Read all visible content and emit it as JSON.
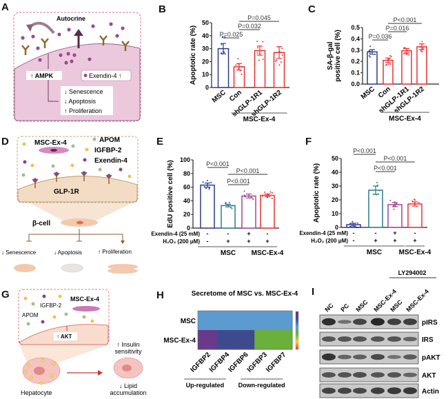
{
  "panels": {
    "A": {
      "label": "A",
      "autocrine": "Autocrine",
      "ampk": "↑ AMPK",
      "exendin": "Exendin-4 ↑",
      "effects": [
        "↓ Senescence",
        "↓ Apoptosis",
        "↑ Proliferation"
      ],
      "colors": {
        "border": "#c86fa3",
        "cell": "#ecc8dd",
        "dot": "#9b4a93",
        "receptor": "#8a6a2e"
      }
    },
    "D": {
      "label": "D",
      "cell_name": "MSC-Ex-4",
      "legend": [
        "APOM",
        "IGFBP-2",
        "Exendin-4"
      ],
      "receptor": "GLP-1R",
      "target": "β-cell",
      "effects": [
        "↓ Senescence",
        "↓ Apoptosis",
        "↑ Proliferation"
      ],
      "colors": {
        "border": "#c9a27e",
        "cell": "#f3dcc4",
        "apom": "#9bc47f",
        "igfbp2": "#f2c14e",
        "exendin": "#8e3e8c"
      }
    },
    "G": {
      "label": "G",
      "cell_name": "MSC-Ex-4",
      "igfbp2": "IGFBP-2",
      "apom": "APOM",
      "akt": "↑ AKT",
      "hepatocyte": "Hepatocyte",
      "insulin": [
        "↑ Insulin",
        "sensitivity"
      ],
      "lipid": [
        "↓ Lipid",
        "accumulation"
      ],
      "colors": {
        "border": "#e07b7b",
        "cell": "#f9dccb",
        "arrow": "#cc3333"
      }
    },
    "I": {
      "label": "I",
      "treatment": "LY294002",
      "lanes": [
        "NC",
        "PC",
        "MSC",
        "MSC-Ex-4",
        "MSC",
        "MSC-Ex-4"
      ],
      "rows": [
        {
          "name": "pIRS",
          "intensity": [
            0.95,
            0.35,
            0.75,
            1.0,
            0.8,
            0.8
          ]
        },
        {
          "name": "IRS",
          "intensity": [
            0.6,
            0.6,
            0.6,
            0.6,
            0.6,
            0.45
          ]
        },
        {
          "name": "pAKT",
          "intensity": [
            0.9,
            0.45,
            0.5,
            0.7,
            0.35,
            0.55
          ]
        },
        {
          "name": "AKT",
          "intensity": [
            0.6,
            0.6,
            0.65,
            0.6,
            0.6,
            0.45
          ]
        },
        {
          "name": "Actin",
          "intensity": [
            0.75,
            0.75,
            0.7,
            0.8,
            0.85,
            0.85
          ]
        }
      ]
    }
  },
  "chart_data": [
    {
      "panel": "B",
      "type": "bar",
      "ylabel": "Apoptotic rate (%)",
      "categories": [
        "MSC",
        "Con",
        "shGLP-1R1",
        "shGLP-1R2"
      ],
      "values": [
        30,
        16,
        28.5,
        27
      ],
      "errors": [
        4,
        2.5,
        3.5,
        4.5
      ],
      "ylim": [
        0,
        50
      ],
      "yticks": [
        "0",
        "10",
        "20",
        "30",
        "40",
        "50"
      ],
      "colors": [
        "#2b3a8c",
        "#e8312f",
        "#e8312f",
        "#e8312f"
      ],
      "groups": [
        {
          "label": "MSC-Ex-4",
          "from": 1,
          "to": 3
        }
      ],
      "comparisons": [
        {
          "pair": [
            0,
            1
          ],
          "label": "P=0.025"
        },
        {
          "pair": [
            1,
            2
          ],
          "label": "P=0.032"
        },
        {
          "pair": [
            1,
            3
          ],
          "label": "P=0.045"
        }
      ]
    },
    {
      "panel": "C",
      "type": "bar",
      "ylabel": [
        "SA-β-gal",
        "positive cell (%)"
      ],
      "categories": [
        "MSC",
        "Con",
        "shGLP-1R1",
        "shGLP-1R2"
      ],
      "values": [
        0.285,
        0.21,
        0.295,
        0.33
      ],
      "errors": [
        0.02,
        0.02,
        0.02,
        0.025
      ],
      "ylim": [
        0,
        0.5
      ],
      "yticks": [
        "0.0",
        "0.1",
        "0.2",
        "0.3",
        "0.4",
        "0.5"
      ],
      "colors": [
        "#2b3a8c",
        "#e8312f",
        "#e8312f",
        "#e8312f"
      ],
      "groups": [
        {
          "label": "MSC-Ex-4",
          "from": 1,
          "to": 3
        }
      ],
      "comparisons": [
        {
          "pair": [
            0,
            1
          ],
          "label": "P=0.036"
        },
        {
          "pair": [
            1,
            2
          ],
          "label": "P=0.016"
        },
        {
          "pair": [
            1,
            3
          ],
          "label": "P<0.001"
        }
      ]
    },
    {
      "panel": "E",
      "type": "bar",
      "ylabel": "EdU positive cell (%)",
      "values": [
        63,
        33,
        47,
        48
      ],
      "errors": [
        3,
        2,
        3,
        2
      ],
      "ylim": [
        0,
        100
      ],
      "yticks": [
        "0",
        "20",
        "40",
        "60",
        "80",
        "100"
      ],
      "colors": [
        "#2b3a8c",
        "#2a7a8a",
        "#a0449a",
        "#e8312f"
      ],
      "conditions": [
        {
          "label": "Exendin-4 (25 mM)",
          "values": [
            "-",
            "-",
            "+",
            "-"
          ]
        },
        {
          "label": "H₂O₂ (200 μM)",
          "values": [
            "-",
            "+",
            "+",
            "+"
          ]
        }
      ],
      "groups": [
        {
          "label": "MSC",
          "from": 0,
          "to": 2
        },
        {
          "label": "MSC-Ex-4",
          "from": 3,
          "to": 3
        }
      ],
      "comparisons": [
        {
          "pair": [
            0,
            1
          ],
          "label": "P<0.001"
        },
        {
          "pair": [
            1,
            3
          ],
          "label": "P<0.001"
        },
        {
          "pair": [
            1,
            2
          ],
          "label": "P<0.001"
        }
      ]
    },
    {
      "panel": "F",
      "type": "bar",
      "ylabel": "Apoptotic rate (%)",
      "values": [
        2,
        27,
        16.5,
        17
      ],
      "errors": [
        1,
        3,
        1.5,
        1.5
      ],
      "ylim": [
        0,
        50
      ],
      "yticks": [
        "0",
        "10",
        "20",
        "30",
        "40",
        "50"
      ],
      "colors": [
        "#2b3a8c",
        "#2a7a8a",
        "#a0449a",
        "#e8312f"
      ],
      "conditions": [
        {
          "label": "Exendin-4 (25 mM)",
          "values": [
            "-",
            "-",
            "+",
            "-"
          ]
        },
        {
          "label": "H₂O₂ (200 μM)",
          "values": [
            "-",
            "+",
            "+",
            "+"
          ]
        }
      ],
      "groups": [
        {
          "label": "MSC",
          "from": 0,
          "to": 2
        },
        {
          "label": "MSC-Ex-4",
          "from": 3,
          "to": 3
        }
      ],
      "comparisons": [
        {
          "pair": [
            0,
            1
          ],
          "label": "P<0.001"
        },
        {
          "pair": [
            1,
            3
          ],
          "label": "P<0.001"
        },
        {
          "pair": [
            1,
            2
          ],
          "label": "P<0.001"
        }
      ]
    },
    {
      "panel": "H",
      "type": "heatmap",
      "title": "Secretome of MSC vs. MSC-Ex-4",
      "rows": [
        "MSC",
        "MSC-Ex-4"
      ],
      "columns": [
        "IGFBP2",
        "IGFBP4",
        "IGFBP6",
        "IGFBP3",
        "IGFBP7"
      ],
      "cell_colors": [
        [
          "#5b9bd0",
          "#5b9bd0",
          "#5b9bd0",
          "#5b9bd0",
          "#5b9bd0"
        ],
        [
          "#6a3a8a",
          "#3f4a8e",
          "#3f4a8e",
          "#6ab03a",
          "#6ab03a"
        ]
      ],
      "colorbar": [
        "#6a2a8a",
        "#3f4a8e",
        "#5b9bd0",
        "#6ab03a",
        "#f5e020",
        "#e8312f"
      ],
      "groups": [
        {
          "label": "Up-regulated",
          "from": 0,
          "to": 1
        },
        {
          "label": "Down-regulated",
          "from": 3,
          "to": 4
        }
      ]
    }
  ]
}
